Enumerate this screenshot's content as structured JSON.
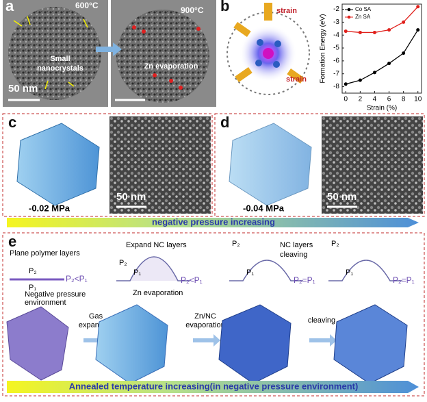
{
  "panels": {
    "a": {
      "label": "a",
      "left_temperature": "600°C",
      "right_temperature": "900°C",
      "left_annotation": [
        "Small",
        "nanocrystals"
      ],
      "scale_bar": "50 nm",
      "right_annotation": "Zn evaporation"
    },
    "b": {
      "label": "b",
      "strain_labels": [
        "strain",
        "strain"
      ],
      "chart": {
        "type": "line",
        "x_label": "Strain (%)",
        "y_label": "Formation Energy (eV)",
        "x": [
          0,
          2,
          4,
          6,
          8,
          10
        ],
        "series": [
          {
            "name": "Co SA",
            "color": "#000000",
            "values": [
              -7.8,
              -7.5,
              -6.9,
              -6.2,
              -5.4,
              -3.6
            ]
          },
          {
            "name": "Zn SA",
            "color": "#e0201b",
            "values": [
              -3.7,
              -3.8,
              -3.8,
              -3.6,
              -3.0,
              -1.8
            ]
          }
        ],
        "xlim": [
          -0.5,
          10.5
        ],
        "ylim": [
          -8.5,
          -1.6
        ],
        "xticks": [
          0,
          2,
          4,
          6,
          8,
          10
        ],
        "yticks": [
          -2,
          -3,
          -4,
          -5,
          -6,
          -7,
          -8
        ]
      }
    },
    "c": {
      "label": "c",
      "pressure": "-0.02 MPa",
      "scale_bar": "50 nm"
    },
    "d": {
      "label": "d",
      "pressure": "-0.04 MPa",
      "scale_bar": "50 nm"
    },
    "pressure_arrow": "negative pressure increasing",
    "e": {
      "label": "e",
      "stages": [
        {
          "note": [
            "Plane polymer layers"
          ],
          "top": "P₂",
          "bottom": "P₁",
          "relation": "P₂<P₁",
          "sub_note": [
            "Negative pressure",
            "environment"
          ]
        },
        {
          "note": [
            "Expand NC layers"
          ],
          "top": "P₂",
          "bottom": "P₁",
          "relation": "P₂<P₁",
          "sub_note": [
            "Zn evaporation"
          ]
        },
        {
          "note": [
            "NC layers",
            "cleaving"
          ],
          "top": "P₂",
          "bottom": "P₁",
          "relation": "P₂=P₁"
        },
        {
          "top": "P₂",
          "bottom": "P₁",
          "relation": "P₂=P₁"
        }
      ],
      "transitions": [
        [
          "Gas",
          "expansion"
        ],
        [
          "Zn/NC",
          "evaporation"
        ],
        [
          "cleaving"
        ]
      ],
      "temperature_arrow": "Annealed temperature increasing(in negative pressure environment)"
    }
  }
}
